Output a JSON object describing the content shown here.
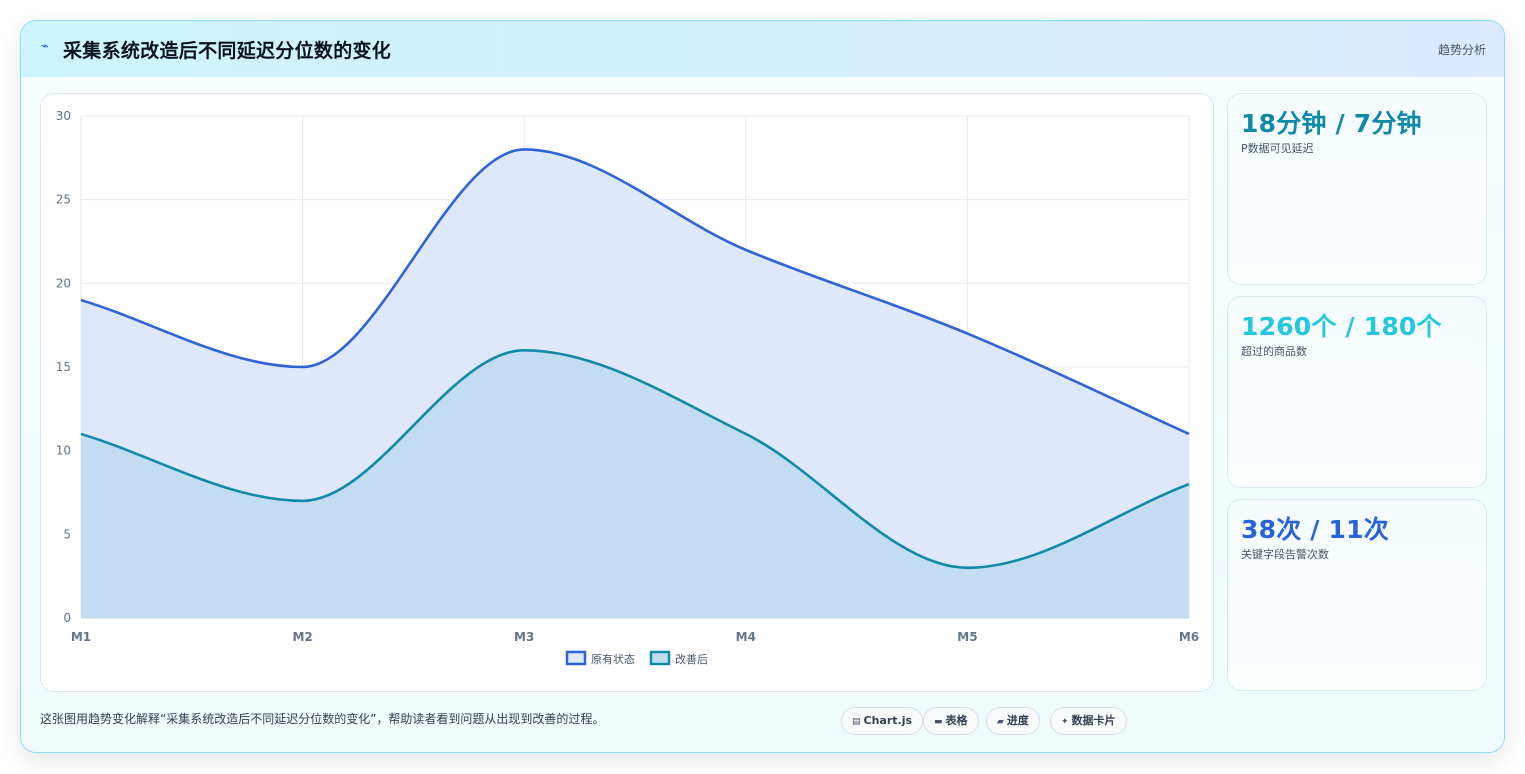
{
  "header": {
    "icon": "trend-line-icon",
    "title": "采集系统改造后不同延迟分位数的变化",
    "tag": "趋势分析"
  },
  "chart_data": {
    "type": "area",
    "title": "",
    "xlabel": "",
    "ylabel": "",
    "categories": [
      "M1",
      "M2",
      "M3",
      "M4",
      "M5",
      "M6"
    ],
    "ylim": [
      0,
      30
    ],
    "yticks": [
      0,
      5,
      10,
      15,
      20,
      25,
      30
    ],
    "grid": true,
    "legend_position": "bottom",
    "series": [
      {
        "name": "原有状态",
        "values": [
          19,
          15,
          28,
          22,
          17,
          11
        ],
        "color": "#2f63d8",
        "fill": "#dfe8fa"
      },
      {
        "name": "改善后",
        "values": [
          11,
          7,
          16,
          11,
          3,
          8
        ],
        "color": "#118aa8",
        "fill": "#c4dcf1"
      }
    ]
  },
  "stats": [
    {
      "value": "18分钟 / 7分钟",
      "label": "P数据可见延迟",
      "color": "#0e8aa6"
    },
    {
      "value": "1260个 / 180个",
      "label": "超过的商品数",
      "color": "#22c8e0"
    },
    {
      "value": "38次 / 11次",
      "label": "关键字段告警次数",
      "color": "#2563d6"
    }
  ],
  "footer": {
    "caption": "这张图用趋势变化解释“采集系统改造后不同延迟分位数的变化”，帮助读者看到问题从出现到改善的过程。",
    "chips": [
      {
        "icon": "chart-icon",
        "glyph": "▤",
        "label": "Chart.js"
      },
      {
        "icon": "table-icon",
        "glyph": "▬",
        "label": "表格"
      },
      {
        "icon": "progress-icon",
        "glyph": "▰",
        "label": "进度"
      },
      {
        "icon": "data-card-icon",
        "glyph": "✦",
        "label": "数据卡片"
      }
    ]
  }
}
